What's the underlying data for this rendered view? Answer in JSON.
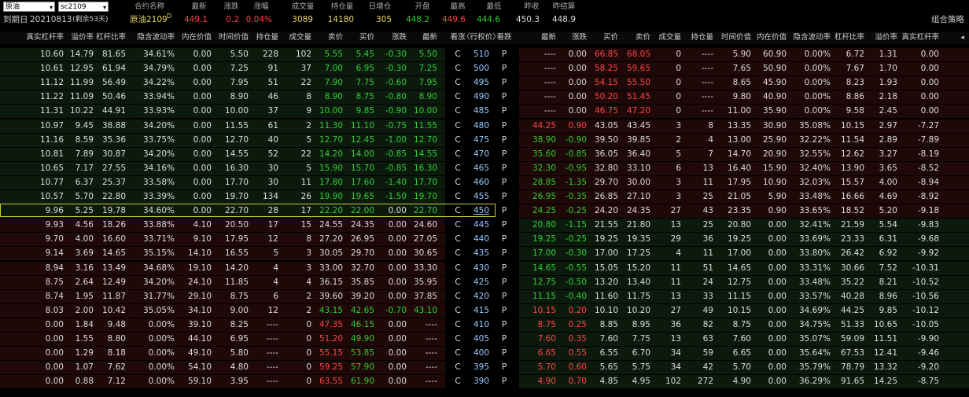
{
  "header": {
    "selects": [
      "原油",
      "sc2109"
    ],
    "labels": [
      "合约名称",
      "最新",
      "涨跌",
      "涨幅",
      "成交量",
      "持仓量",
      "日增仓",
      "开盘",
      "最高",
      "最低",
      "昨收",
      "昨结算"
    ],
    "expiry_label": "到期日",
    "expiry": "20210813",
    "remaining": "(剩余53天)",
    "contract": "原油2109",
    "contract_mark": "D",
    "values": [
      "449.1",
      "0.2",
      "0.04%",
      "3089",
      "14180",
      "305",
      "448.2",
      "449.6",
      "444.6",
      "450.3",
      "448.9"
    ],
    "strategy": "组合策略"
  },
  "table": {
    "columns": [
      "真实杠杆率",
      "溢价率",
      "杠杆比率",
      "隐含波动率",
      "内在价值",
      "时间价值",
      "持仓量",
      "成交量",
      "卖价",
      "买价",
      "涨跌",
      "最新",
      "看涨",
      "〈行权价〉",
      "看跌",
      "最新",
      "涨跌",
      "买价",
      "卖价",
      "成交量",
      "持仓量",
      "时间价值",
      "内在价值",
      "隐含波动率",
      "杠杆比率",
      "溢价率",
      "真实杠杆率"
    ],
    "rows": [
      [
        "10.60",
        "14.79",
        "81.65",
        "34.61%",
        "0.00",
        "5.50",
        "228",
        "102",
        "5.55",
        "5.45",
        "-0.30",
        "5.50",
        "C",
        "510",
        "P",
        "----",
        "0.00",
        "66.85",
        "68.05",
        "0",
        "----",
        "5.90",
        "60.90",
        "0.00%",
        "6.72",
        "1.31",
        "0.00"
      ],
      [
        "10.61",
        "12.95",
        "61.94",
        "34.79%",
        "0.00",
        "7.25",
        "91",
        "37",
        "7.00",
        "6.95",
        "-0.30",
        "7.25",
        "C",
        "500",
        "P",
        "----",
        "0.00",
        "58.25",
        "59.65",
        "0",
        "----",
        "7.65",
        "50.90",
        "0.00%",
        "7.67",
        "1.70",
        "0.00"
      ],
      [
        "11.12",
        "11.99",
        "56.49",
        "34.22%",
        "0.00",
        "7.95",
        "51",
        "22",
        "7.90",
        "7.75",
        "-0.60",
        "7.95",
        "C",
        "495",
        "P",
        "----",
        "0.00",
        "54.15",
        "55.50",
        "0",
        "----",
        "8.65",
        "45.90",
        "0.00%",
        "8.23",
        "1.93",
        "0.00"
      ],
      [
        "11.22",
        "11.09",
        "50.46",
        "33.94%",
        "0.00",
        "8.90",
        "46",
        "8",
        "8.90",
        "8.75",
        "-0.80",
        "8.90",
        "C",
        "490",
        "P",
        "----",
        "0.00",
        "50.20",
        "51.45",
        "0",
        "----",
        "9.80",
        "40.90",
        "0.00%",
        "8.86",
        "2.18",
        "0.00"
      ],
      [
        "11.31",
        "10.22",
        "44.91",
        "33.93%",
        "0.00",
        "10.00",
        "37",
        "9",
        "10.00",
        "9.85",
        "-0.90",
        "10.00",
        "C",
        "485",
        "P",
        "----",
        "0.00",
        "46.75",
        "47.20",
        "0",
        "----",
        "11.00",
        "35.90",
        "0.00%",
        "9.58",
        "2.45",
        "0.00"
      ],
      [
        "10.97",
        "9.45",
        "38.88",
        "34.20%",
        "0.00",
        "11.55",
        "61",
        "2",
        "11.30",
        "11.10",
        "-0.75",
        "11.55",
        "C",
        "480",
        "P",
        "44.25",
        "0.90",
        "43.05",
        "43.45",
        "3",
        "8",
        "13.35",
        "30.90",
        "35.08%",
        "10.15",
        "2.97",
        "-7.27"
      ],
      [
        "11.16",
        "8.59",
        "35.36",
        "33.75%",
        "0.00",
        "12.70",
        "40",
        "5",
        "12.70",
        "12.45",
        "-1.00",
        "12.70",
        "C",
        "475",
        "P",
        "38.90",
        "-0.90",
        "39.50",
        "39.85",
        "2",
        "4",
        "13.00",
        "25.90",
        "32.22%",
        "11.54",
        "2.89",
        "-7.89"
      ],
      [
        "10.81",
        "7.89",
        "30.87",
        "34.20%",
        "0.00",
        "14.55",
        "52",
        "22",
        "14.20",
        "14.00",
        "-0.85",
        "14.55",
        "C",
        "470",
        "P",
        "35.60",
        "-0.85",
        "36.05",
        "36.40",
        "5",
        "7",
        "14.70",
        "20.90",
        "32.55%",
        "12.62",
        "3.27",
        "-8.19"
      ],
      [
        "10.65",
        "7.17",
        "27.55",
        "34.16%",
        "0.00",
        "16.30",
        "30",
        "5",
        "15.90",
        "15.70",
        "-0.85",
        "16.30",
        "C",
        "465",
        "P",
        "32.30",
        "-0.95",
        "32.80",
        "33.10",
        "6",
        "13",
        "16.40",
        "15.90",
        "32.40%",
        "13.90",
        "3.65",
        "-8.52"
      ],
      [
        "10.77",
        "6.37",
        "25.37",
        "33.58%",
        "0.00",
        "17.70",
        "30",
        "11",
        "17.80",
        "17.60",
        "-1.40",
        "17.70",
        "C",
        "460",
        "P",
        "28.85",
        "-1.35",
        "29.70",
        "30.00",
        "3",
        "11",
        "17.95",
        "10.90",
        "32.03%",
        "15.57",
        "4.00",
        "-8.94"
      ],
      [
        "10.57",
        "5.70",
        "22.80",
        "33.39%",
        "0.00",
        "19.70",
        "134",
        "26",
        "19.90",
        "19.65",
        "-1.50",
        "19.70",
        "C",
        "455",
        "P",
        "26.95",
        "-0.35",
        "26.85",
        "27.10",
        "3",
        "25",
        "21.05",
        "5.90",
        "33.48%",
        "16.66",
        "4.69",
        "-8.92"
      ],
      [
        "9.96",
        "5.25",
        "19.78",
        "34.60%",
        "0.00",
        "22.70",
        "28",
        "17",
        "22.20",
        "22.00",
        "0.00",
        "22.70",
        "C",
        "450",
        "P",
        "24.25",
        "-0.25",
        "24.20",
        "24.35",
        "27",
        "43",
        "23.35",
        "0.90",
        "33.65%",
        "18.52",
        "5.20",
        "-9.18"
      ],
      [
        "9.93",
        "4.56",
        "18.26",
        "33.88%",
        "4.10",
        "20.50",
        "17",
        "15",
        "24.55",
        "24.35",
        "0.00",
        "24.60",
        "C",
        "445",
        "P",
        "20.80",
        "-1.15",
        "21.55",
        "21.80",
        "13",
        "25",
        "20.80",
        "0.00",
        "32.41%",
        "21.59",
        "5.54",
        "-9.83"
      ],
      [
        "9.70",
        "4.00",
        "16.60",
        "33.71%",
        "9.10",
        "17.95",
        "12",
        "8",
        "27.20",
        "26.95",
        "0.00",
        "27.05",
        "C",
        "440",
        "P",
        "19.25",
        "-0.25",
        "19.25",
        "19.35",
        "29",
        "36",
        "19.25",
        "0.00",
        "33.69%",
        "23.33",
        "6.31",
        "-9.68"
      ],
      [
        "9.14",
        "3.69",
        "14.65",
        "35.15%",
        "14.10",
        "16.55",
        "5",
        "3",
        "30.05",
        "29.70",
        "0.00",
        "30.65",
        "C",
        "435",
        "P",
        "17.00",
        "-0.30",
        "17.00",
        "17.25",
        "4",
        "11",
        "17.00",
        "0.00",
        "33.80%",
        "26.42",
        "6.92",
        "-9.92"
      ],
      [
        "8.94",
        "3.16",
        "13.49",
        "34.68%",
        "19.10",
        "14.20",
        "4",
        "3",
        "33.00",
        "32.70",
        "0.00",
        "33.30",
        "C",
        "430",
        "P",
        "14.65",
        "-0.55",
        "15.05",
        "15.20",
        "11",
        "51",
        "14.65",
        "0.00",
        "33.31%",
        "30.66",
        "7.52",
        "-10.31"
      ],
      [
        "8.75",
        "2.64",
        "12.49",
        "34.20%",
        "24.10",
        "11.85",
        "4",
        "4",
        "36.15",
        "35.85",
        "0.00",
        "35.95",
        "C",
        "425",
        "P",
        "12.75",
        "-0.50",
        "13.20",
        "13.40",
        "11",
        "24",
        "12.75",
        "0.00",
        "33.48%",
        "35.22",
        "8.21",
        "-10.52"
      ],
      [
        "8.74",
        "1.95",
        "11.87",
        "31.77%",
        "29.10",
        "8.75",
        "6",
        "2",
        "39.60",
        "39.20",
        "0.00",
        "37.85",
        "C",
        "420",
        "P",
        "11.15",
        "-0.40",
        "11.60",
        "11.75",
        "13",
        "33",
        "11.15",
        "0.00",
        "33.57%",
        "40.28",
        "8.96",
        "-10.56"
      ],
      [
        "8.03",
        "2.00",
        "10.42",
        "35.05%",
        "34.10",
        "9.00",
        "12",
        "2",
        "43.15",
        "42.65",
        "-0.70",
        "43.10",
        "C",
        "415",
        "P",
        "10.15",
        "0.20",
        "10.10",
        "10.20",
        "27",
        "49",
        "10.15",
        "0.00",
        "34.69%",
        "44.25",
        "9.85",
        "-10.12"
      ],
      [
        "0.00",
        "1.84",
        "9.48",
        "0.00%",
        "39.10",
        "8.25",
        "----",
        "0",
        "47.35",
        "46.15",
        "0.00",
        "----",
        "C",
        "410",
        "P",
        "8.75",
        "0.25",
        "8.85",
        "8.95",
        "36",
        "82",
        "8.75",
        "0.00",
        "34.75%",
        "51.33",
        "10.65",
        "-10.05"
      ],
      [
        "0.00",
        "1.55",
        "8.80",
        "0.00%",
        "44.10",
        "6.95",
        "----",
        "0",
        "51.20",
        "49.90",
        "0.00",
        "----",
        "C",
        "405",
        "P",
        "7.60",
        "0.35",
        "7.60",
        "7.75",
        "13",
        "63",
        "7.60",
        "0.00",
        "35.07%",
        "59.09",
        "11.51",
        "-9.90"
      ],
      [
        "0.00",
        "1.29",
        "8.18",
        "0.00%",
        "49.10",
        "5.80",
        "----",
        "0",
        "55.15",
        "53.85",
        "0.00",
        "----",
        "C",
        "400",
        "P",
        "6.65",
        "0.55",
        "6.55",
        "6.70",
        "34",
        "59",
        "6.65",
        "0.00",
        "35.64%",
        "67.53",
        "12.41",
        "-9.46"
      ],
      [
        "0.00",
        "1.07",
        "7.62",
        "0.00%",
        "54.10",
        "4.80",
        "----",
        "0",
        "59.25",
        "57.90",
        "0.00",
        "----",
        "C",
        "395",
        "P",
        "5.70",
        "0.60",
        "5.65",
        "5.75",
        "34",
        "42",
        "5.70",
        "0.00",
        "35.79%",
        "78.79",
        "13.32",
        "-9.20"
      ],
      [
        "0.00",
        "0.88",
        "7.12",
        "0.00%",
        "59.10",
        "3.95",
        "----",
        "0",
        "63.55",
        "61.90",
        "0.00",
        "----",
        "C",
        "390",
        "P",
        "4.90",
        "0.70",
        "4.85",
        "4.95",
        "102",
        "272",
        "4.90",
        "0.00",
        "36.29%",
        "91.65",
        "14.25",
        "-8.75"
      ]
    ]
  }
}
